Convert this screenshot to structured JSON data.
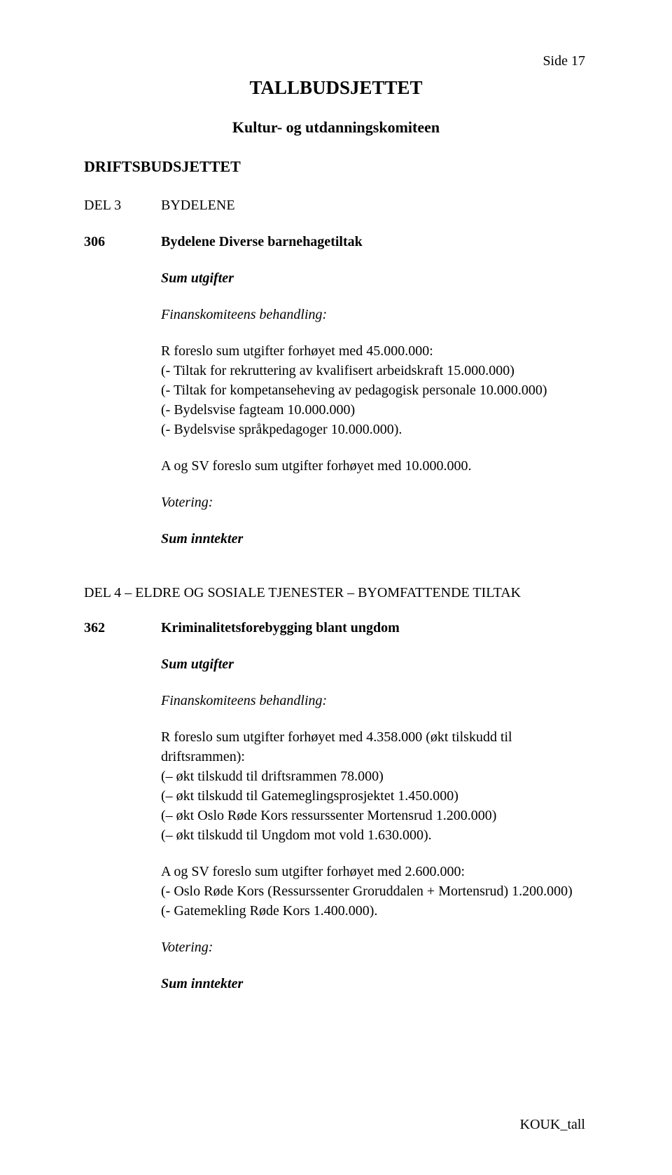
{
  "page_label": "Side 17",
  "title": "TALLBUDSJETTET",
  "subtitle": "Kultur- og utdanningskomiteen",
  "section_heading": "DRIFTSBUDSJETTET",
  "del3": {
    "num": "DEL 3",
    "label": "BYDELENE"
  },
  "item306": {
    "num": "306",
    "label": "Bydelene Diverse barnehagetiltak"
  },
  "sum_utgifter": "Sum utgifter",
  "finans_heading": "Finanskomiteens behandling:",
  "block306": {
    "l1": "R foreslo sum utgifter forhøyet med 45.000.000:",
    "l2": "(- Tiltak for rekruttering av kvalifisert arbeidskraft 15.000.000)",
    "l3": "(- Tiltak for kompetanseheving av pedagogisk personale 10.000.000)",
    "l4": "(- Bydelsvise fagteam 10.000.000)",
    "l5": "(- Bydelsvise språkpedagoger 10.000.000).",
    "l6": "A og SV foreslo sum utgifter forhøyet med 10.000.000."
  },
  "votering": "Votering:",
  "sum_inntekter": "Sum inntekter",
  "del4_heading": "DEL 4 – ELDRE OG SOSIALE TJENESTER – BYOMFATTENDE TILTAK",
  "item362": {
    "num": "362",
    "label": "Kriminalitetsforebygging blant ungdom"
  },
  "block362": {
    "l1": "R foreslo sum utgifter forhøyet med 4.358.000 (økt tilskudd til driftsrammen):",
    "l2": "(– økt tilskudd til driftsrammen 78.000)",
    "l3": "(– økt tilskudd til Gatemeglingsprosjektet 1.450.000)",
    "l4": "(– økt Oslo Røde Kors ressurssenter Mortensrud 1.200.000)",
    "l5": "(– økt tilskudd til Ungdom mot vold 1.630.000).",
    "l6": "A og SV foreslo sum utgifter forhøyet med 2.600.000:",
    "l7": "(- Oslo Røde Kors (Ressurssenter Groruddalen + Mortensrud) 1.200.000)",
    "l8": "(- Gatemekling Røde Kors 1.400.000)."
  },
  "footer_code": "KOUK_tall",
  "colors": {
    "text": "#000000",
    "background": "#ffffff"
  },
  "typography": {
    "family": "Times New Roman",
    "body_size_pt": 15,
    "title_size_pt": 20
  }
}
